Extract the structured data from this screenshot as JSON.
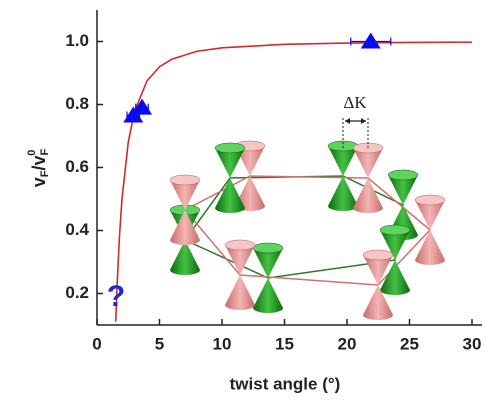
{
  "chart_data": {
    "type": "line",
    "xlabel": "twist angle (°)",
    "ylabel": {
      "v1": "v",
      "s1": "F",
      "mid": "/v",
      "s2": "F",
      "sup": "0"
    },
    "xlim": [
      0,
      30
    ],
    "ylim": [
      0.1,
      1.1
    ],
    "xticks": [
      0,
      5,
      10,
      15,
      20,
      25,
      30
    ],
    "yticks": [
      0.2,
      0.4,
      0.6,
      0.8,
      {
        "value": 1,
        "label": "1.0"
      }
    ],
    "series": [
      {
        "type": "line",
        "color": "#d42a2a",
        "x": [
          1.5,
          1.6,
          1.8,
          2,
          2.5,
          3,
          4,
          5,
          6,
          8,
          10,
          15,
          20,
          25,
          30
        ],
        "values": [
          0.111,
          0.219,
          0.383,
          0.5,
          0.68,
          0.778,
          0.875,
          0.92,
          0.944,
          0.969,
          0.98,
          0.991,
          0.995,
          0.997,
          0.998
        ]
      },
      {
        "type": "scatter",
        "color": "#0a0aee",
        "x": [
          2.9,
          3.6,
          21.9
        ],
        "values": [
          0.765,
          0.79,
          1.0
        ],
        "xerr": [
          0.5,
          0.5,
          1.6
        ]
      }
    ],
    "annotations": [
      "?",
      "ΔK"
    ]
  }
}
